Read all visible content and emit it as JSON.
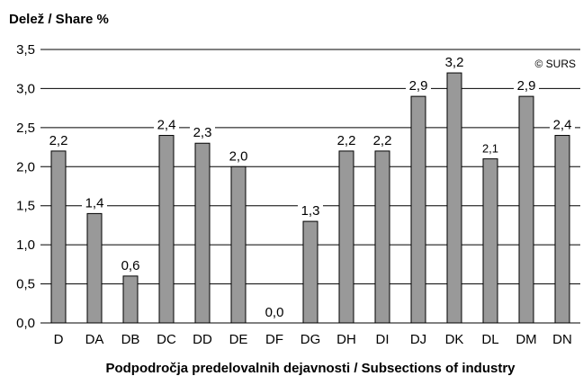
{
  "chart_data": {
    "type": "bar",
    "ylabel": "Delež / Share %",
    "xlabel": "Podpodročja predelovalnih dejavnosti / Subsections of industry",
    "copyright": "© SURS",
    "categories": [
      "D",
      "DA",
      "DB",
      "DC",
      "DD",
      "DE",
      "DF",
      "DG",
      "DH",
      "DI",
      "DJ",
      "DK",
      "DL",
      "DM",
      "DN"
    ],
    "values": [
      2.2,
      1.4,
      0.6,
      2.4,
      2.3,
      2.0,
      0.0,
      1.3,
      2.2,
      2.2,
      2.9,
      3.2,
      2.1,
      2.9,
      2.4
    ],
    "value_labels": [
      "2,2",
      "1,4",
      "0,6",
      "2,4",
      "2,3",
      "2,0",
      "0,0",
      "1,3",
      "2,2",
      "2,2",
      "2,9",
      "3,2",
      "2,1",
      "2,9",
      "2,4"
    ],
    "ylim": [
      0,
      3.5
    ],
    "yticks": [
      0,
      0.5,
      1.0,
      1.5,
      2.0,
      2.5,
      3.0,
      3.5
    ],
    "ytick_labels": [
      "0,0",
      "0,5",
      "1,0",
      "1,5",
      "2,0",
      "2,5",
      "3,0",
      "3,5"
    ],
    "grid": true,
    "legend": "none",
    "colors": {
      "bar_fill": "#999999",
      "bar_stroke": "#000000",
      "grid": "#000000",
      "axis": "#000000"
    }
  }
}
